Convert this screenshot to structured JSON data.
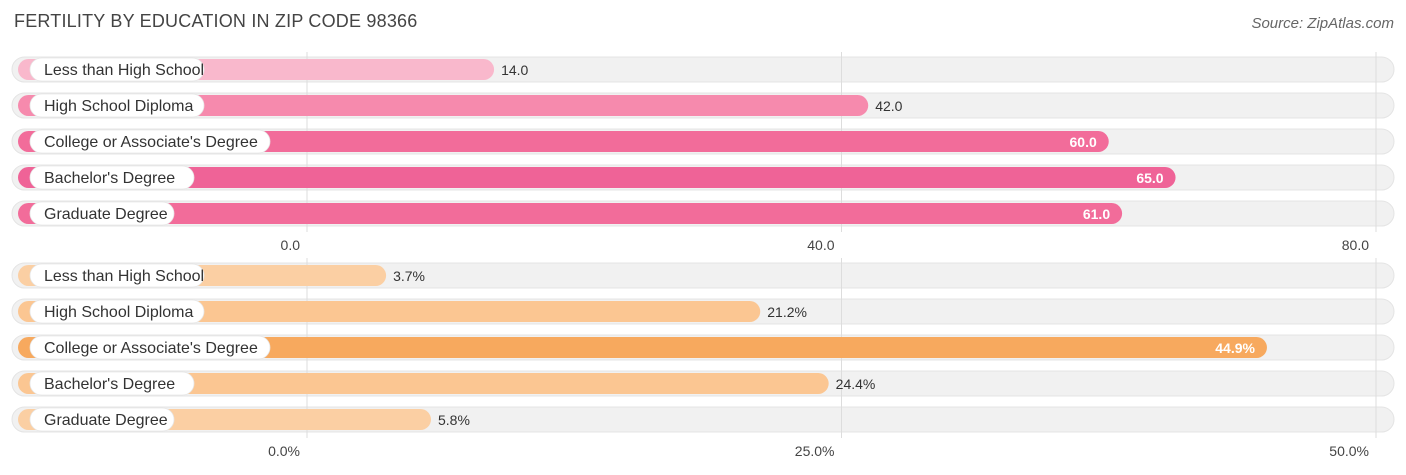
{
  "header": {
    "title": "FERTILITY BY EDUCATION IN ZIP CODE 98366",
    "source": "Source: ZipAtlas.com"
  },
  "chart_data": [
    {
      "type": "bar",
      "orientation": "horizontal",
      "categories": [
        "Less than High School",
        "High School Diploma",
        "College or Associate's Degree",
        "Bachelor's Degree",
        "Graduate Degree"
      ],
      "values": [
        14.0,
        42.0,
        60.0,
        65.0,
        61.0
      ],
      "value_labels": [
        "14.0",
        "42.0",
        "60.0",
        "65.0",
        "61.0"
      ],
      "xlim": [
        0,
        80
      ],
      "ticks": [
        0,
        40,
        80
      ],
      "tick_labels": [
        "0.0",
        "40.0",
        "80.0"
      ],
      "colors": [
        "#f9b8cc",
        "#f68aad",
        "#f26c9a",
        "#ef6397",
        "#f26c9a"
      ],
      "grid": true
    },
    {
      "type": "bar",
      "orientation": "horizontal",
      "categories": [
        "Less than High School",
        "High School Diploma",
        "College or Associate's Degree",
        "Bachelor's Degree",
        "Graduate Degree"
      ],
      "values": [
        3.7,
        21.2,
        44.9,
        24.4,
        5.8
      ],
      "value_labels": [
        "3.7%",
        "21.2%",
        "44.9%",
        "24.4%",
        "5.8%"
      ],
      "xlim": [
        0,
        50
      ],
      "ticks": [
        0,
        25,
        50
      ],
      "tick_labels": [
        "0.0%",
        "25.0%",
        "50.0%"
      ],
      "colors": [
        "#fbcfa3",
        "#fbc692",
        "#f7a95e",
        "#fbc692",
        "#fbcfa3"
      ],
      "grid": true
    }
  ]
}
